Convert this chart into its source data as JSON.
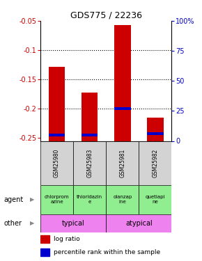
{
  "title": "GDS775 / 22236",
  "samples": [
    "GSM25980",
    "GSM25983",
    "GSM25981",
    "GSM25982"
  ],
  "log_ratio": [
    -0.128,
    -0.172,
    -0.057,
    -0.215
  ],
  "log_ratio_base": -0.255,
  "percentile_rank": [
    5,
    5,
    27,
    6
  ],
  "ylim_left": [
    -0.255,
    -0.05
  ],
  "ylim_right": [
    0,
    100
  ],
  "yticks_left": [
    -0.25,
    -0.2,
    -0.15,
    -0.1,
    -0.05
  ],
  "yticks_right": [
    0,
    25,
    50,
    75,
    100
  ],
  "ytick_labels_left": [
    "-0.25",
    "-0.2",
    "-0.15",
    "-0.1",
    "-0.05"
  ],
  "ytick_labels_right": [
    "0",
    "25",
    "50",
    "75",
    "100%"
  ],
  "agent_labels": [
    "chlorprom\nazine",
    "thioridazin\ne",
    "olanzap\nine",
    "quetiapi\nne"
  ],
  "bar_color": "#cc0000",
  "percentile_color": "#0000cc",
  "bar_width": 0.5,
  "left_color": "#cc0000",
  "right_color": "#0000cc",
  "grid_vals": [
    -0.2,
    -0.15,
    -0.1
  ],
  "sample_bg": "#d3d3d3",
  "agent_bg": "#90ee90",
  "other_bg": "#ee82ee"
}
